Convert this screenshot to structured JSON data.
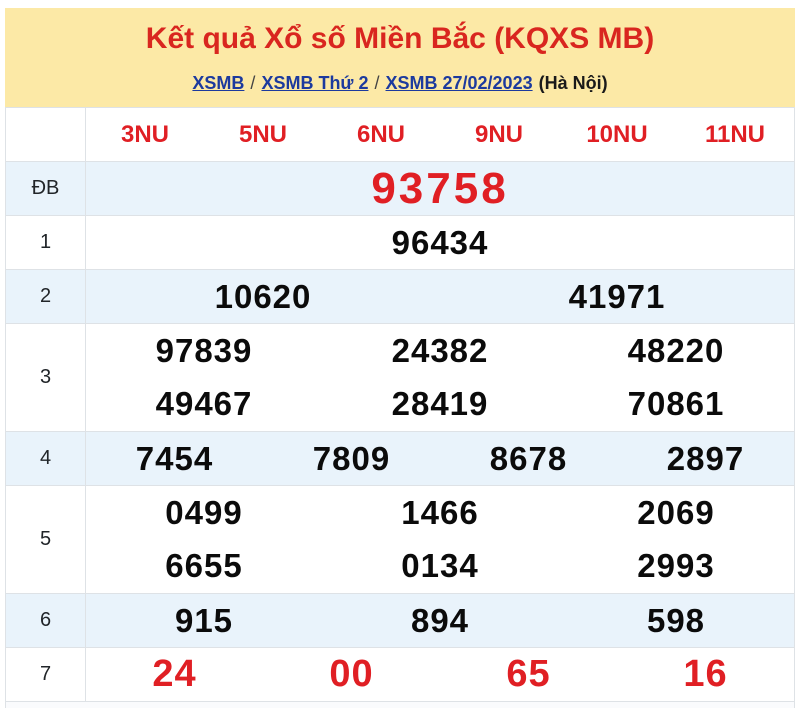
{
  "banner": {
    "title": "Kết quả Xổ số Miền Bắc (KQXS MB)",
    "breadcrumb": {
      "links": [
        "XSMB",
        "XSMB Thứ 2",
        "XSMB 27/02/2023"
      ],
      "separator": "/",
      "suffix": "(Hà Nội)"
    }
  },
  "table": {
    "column_headers": [
      "3NU",
      "5NU",
      "6NU",
      "9NU",
      "10NU",
      "11NU"
    ],
    "rows": [
      {
        "label": "ĐB",
        "style": "jackpot",
        "lines": [
          [
            "93758"
          ]
        ]
      },
      {
        "label": "1",
        "style": "normal",
        "lines": [
          [
            "96434"
          ]
        ]
      },
      {
        "label": "2",
        "style": "normal",
        "lines": [
          [
            "10620",
            "41971"
          ]
        ]
      },
      {
        "label": "3",
        "style": "normal",
        "lines": [
          [
            "97839",
            "24382",
            "48220"
          ],
          [
            "49467",
            "28419",
            "70861"
          ]
        ]
      },
      {
        "label": "4",
        "style": "normal",
        "lines": [
          [
            "7454",
            "7809",
            "8678",
            "2897"
          ]
        ]
      },
      {
        "label": "5",
        "style": "normal",
        "lines": [
          [
            "0499",
            "1466",
            "2069"
          ],
          [
            "6655",
            "0134",
            "2993"
          ]
        ]
      },
      {
        "label": "6",
        "style": "normal",
        "lines": [
          [
            "915",
            "894",
            "598"
          ]
        ]
      },
      {
        "label": "7",
        "style": "red",
        "lines": [
          [
            "24",
            "00",
            "65",
            "16"
          ]
        ]
      }
    ]
  },
  "colors": {
    "banner_bg": "#fce9a6",
    "title_red": "#d9261f",
    "number_red": "#e01f24",
    "link_blue": "#1c3a9e",
    "stripe_blue": "#e9f3fb",
    "border_gray": "#dee2e6"
  }
}
